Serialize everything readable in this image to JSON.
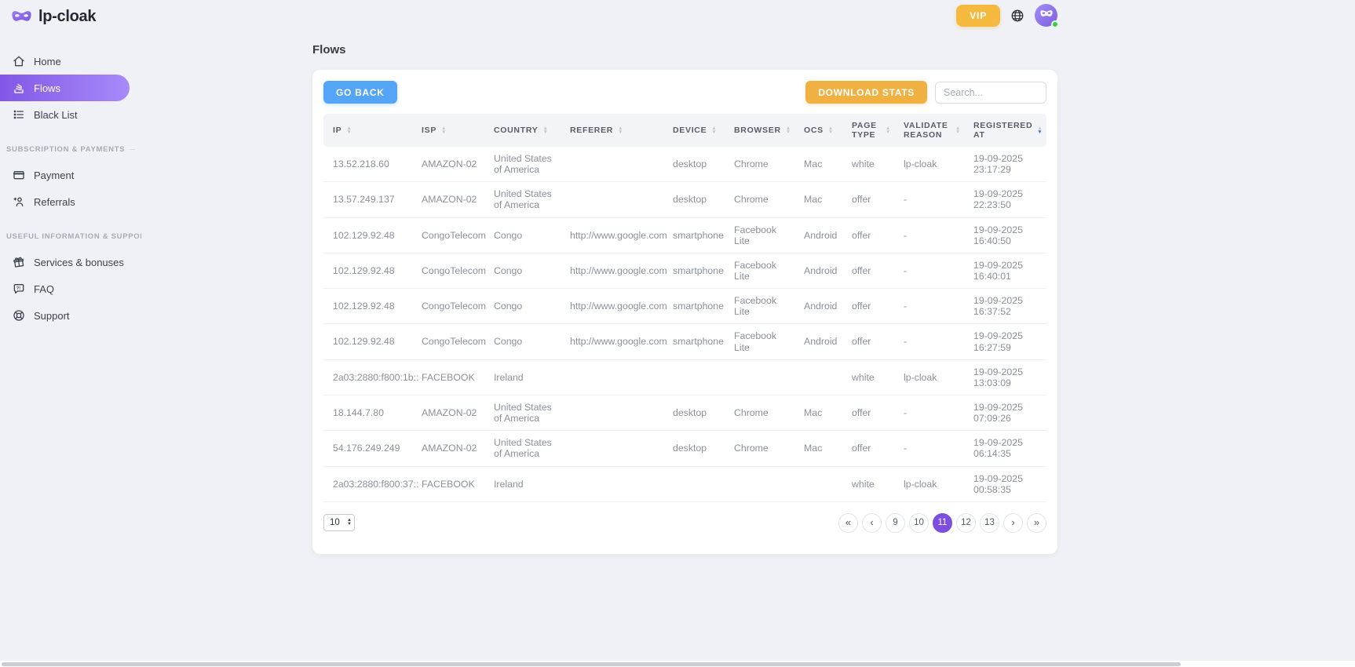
{
  "app": {
    "logo_text": "lp-cloak"
  },
  "topbar": {
    "vip_label": "VIP"
  },
  "sidebar": {
    "sections": [
      {
        "label": "",
        "items": [
          {
            "label": "Home",
            "icon": "home-icon",
            "active": false
          },
          {
            "label": "Flows",
            "icon": "flows-icon",
            "active": true
          },
          {
            "label": "Black List",
            "icon": "black-list-icon",
            "active": false
          }
        ]
      },
      {
        "label": "SUBSCRIPTION & PAYMENTS",
        "items": [
          {
            "label": "Payment",
            "icon": "payment-icon",
            "active": false
          },
          {
            "label": "Referrals",
            "icon": "referrals-icon",
            "active": false
          }
        ]
      },
      {
        "label": "USEFUL INFORMATION & SUPPORT",
        "items": [
          {
            "label": "Services & bonuses",
            "icon": "gift-icon",
            "active": false
          },
          {
            "label": "FAQ",
            "icon": "faq-icon",
            "active": false
          },
          {
            "label": "Support",
            "icon": "lifebuoy-icon",
            "active": false
          }
        ]
      }
    ]
  },
  "page": {
    "title": "Flows"
  },
  "toolbar": {
    "go_back_label": "GO BACK",
    "download_stats_label": "DOWNLOAD STATS",
    "search_placeholder": "Search..."
  },
  "table": {
    "columns": [
      {
        "key": "ip",
        "label": "IP",
        "sorted": null
      },
      {
        "key": "isp",
        "label": "ISP",
        "sorted": null
      },
      {
        "key": "country",
        "label": "COUNTRY",
        "sorted": null
      },
      {
        "key": "referer",
        "label": "REFERER",
        "sorted": null
      },
      {
        "key": "device",
        "label": "DEVICE",
        "sorted": null
      },
      {
        "key": "browser",
        "label": "BROWSER",
        "sorted": null
      },
      {
        "key": "ocs",
        "label": "OCS",
        "sorted": null
      },
      {
        "key": "page_type",
        "label": "PAGE TYPE",
        "sorted": null
      },
      {
        "key": "validate_reason",
        "label": "VALIDATE REASON",
        "sorted": null
      },
      {
        "key": "registered_at",
        "label": "REGISTERED AT",
        "sorted": "desc"
      }
    ],
    "rows": [
      {
        "ip": "13.52.218.60",
        "isp": "AMAZON-02",
        "country": "United States of America",
        "referer": "",
        "device": "desktop",
        "browser": "Chrome",
        "ocs": "Mac",
        "page_type": "white",
        "validate_reason": "lp-cloak",
        "registered_at": "19-09-2025 23:17:29"
      },
      {
        "ip": "13.57.249.137",
        "isp": "AMAZON-02",
        "country": "United States of America",
        "referer": "",
        "device": "desktop",
        "browser": "Chrome",
        "ocs": "Mac",
        "page_type": "offer",
        "validate_reason": "-",
        "registered_at": "19-09-2025 22:23:50"
      },
      {
        "ip": "102.129.92.48",
        "isp": "CongoTelecom",
        "country": "Congo",
        "referer": "http://www.google.com/",
        "device": "smartphone",
        "browser": "Facebook Lite",
        "ocs": "Android",
        "page_type": "offer",
        "validate_reason": "-",
        "registered_at": "19-09-2025 16:40:50"
      },
      {
        "ip": "102.129.92.48",
        "isp": "CongoTelecom",
        "country": "Congo",
        "referer": "http://www.google.com/",
        "device": "smartphone",
        "browser": "Facebook Lite",
        "ocs": "Android",
        "page_type": "offer",
        "validate_reason": "-",
        "registered_at": "19-09-2025 16:40:01"
      },
      {
        "ip": "102.129.92.48",
        "isp": "CongoTelecom",
        "country": "Congo",
        "referer": "http://www.google.com/",
        "device": "smartphone",
        "browser": "Facebook Lite",
        "ocs": "Android",
        "page_type": "offer",
        "validate_reason": "-",
        "registered_at": "19-09-2025 16:37:52"
      },
      {
        "ip": "102.129.92.48",
        "isp": "CongoTelecom",
        "country": "Congo",
        "referer": "http://www.google.com/",
        "device": "smartphone",
        "browser": "Facebook Lite",
        "ocs": "Android",
        "page_type": "offer",
        "validate_reason": "-",
        "registered_at": "19-09-2025 16:27:59"
      },
      {
        "ip": "2a03:2880:f800:1b::",
        "isp": "FACEBOOK",
        "country": "Ireland",
        "referer": "",
        "device": "",
        "browser": "",
        "ocs": "",
        "page_type": "white",
        "validate_reason": "lp-cloak",
        "registered_at": "19-09-2025 13:03:09"
      },
      {
        "ip": "18.144.7.80",
        "isp": "AMAZON-02",
        "country": "United States of America",
        "referer": "",
        "device": "desktop",
        "browser": "Chrome",
        "ocs": "Mac",
        "page_type": "offer",
        "validate_reason": "-",
        "registered_at": "19-09-2025 07:09:26"
      },
      {
        "ip": "54.176.249.249",
        "isp": "AMAZON-02",
        "country": "United States of America",
        "referer": "",
        "device": "desktop",
        "browser": "Chrome",
        "ocs": "Mac",
        "page_type": "offer",
        "validate_reason": "-",
        "registered_at": "19-09-2025 06:14:35"
      },
      {
        "ip": "2a03:2880:f800:37::",
        "isp": "FACEBOOK",
        "country": "Ireland",
        "referer": "",
        "device": "",
        "browser": "",
        "ocs": "",
        "page_type": "white",
        "validate_reason": "lp-cloak",
        "registered_at": "19-09-2025 00:58:35"
      }
    ]
  },
  "footer": {
    "page_size": "10",
    "page_size_options": [
      "10"
    ],
    "pagination": [
      {
        "label": "«",
        "kind": "first",
        "active": false
      },
      {
        "label": "‹",
        "kind": "prev",
        "active": false
      },
      {
        "label": "9",
        "kind": "page",
        "active": false
      },
      {
        "label": "10",
        "kind": "page",
        "active": false
      },
      {
        "label": "11",
        "kind": "page",
        "active": true
      },
      {
        "label": "12",
        "kind": "page",
        "active": false
      },
      {
        "label": "13",
        "kind": "page",
        "active": false
      },
      {
        "label": "›",
        "kind": "next",
        "active": false
      },
      {
        "label": "»",
        "kind": "last",
        "active": false
      }
    ]
  },
  "colors": {
    "primary_purple": "#7c4fe0",
    "sidebar_grad_start": "#8257e6",
    "sidebar_grad_end": "#a78bfa",
    "blue_button": "#54a5f6",
    "amber_button": "#f1b142",
    "vip_badge": "#f5b93f",
    "status_online": "#35d13f",
    "sort_active": "#4b5bf5"
  }
}
